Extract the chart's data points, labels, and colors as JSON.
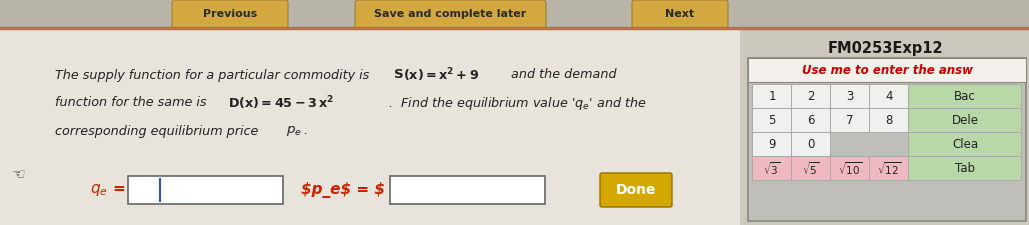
{
  "bg_color": "#ccc8be",
  "main_bg": "#e8e4dc",
  "title": "FM0253Exp12",
  "done_btn_color": "#d4a800",
  "done_btn_text": "Done",
  "keypad_header": "Use me to enter the answ",
  "keypad_header_color": "#cc0000",
  "keypad_bg": "#c0beb8",
  "num_key_bg": "#f0f0ee",
  "sqrt_key_bg": "#f0b8c0",
  "action_key_bg": "#b8d8a8",
  "text_color_dark": "#333333",
  "text_color_red": "#cc0000",
  "input_box_bg": "#ffffff",
  "nav_bar_bg": "#b8b4a8",
  "nav_btn_color": "#d4a840",
  "separator_color": "#c07040",
  "keypad_border_color": "#888880"
}
